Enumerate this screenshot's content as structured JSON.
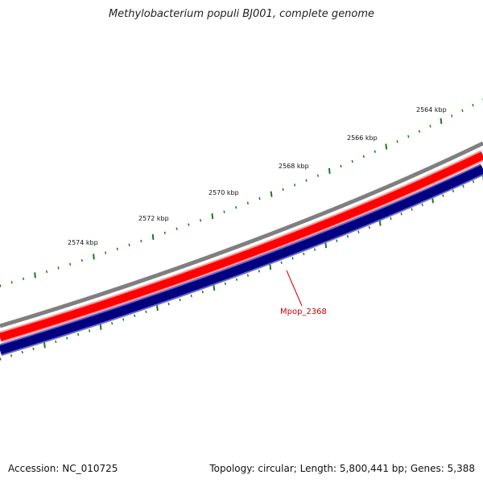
{
  "title": "Methylobacterium populi BJ001, complete genome",
  "accession": "Accession: NC_010725",
  "summary": "Topology: circular; Length: 5,800,441 bp; Genes: 5,388",
  "kbp_labels": [
    "2564 kbp",
    "2566 kbp",
    "2568 kbp",
    "2570 kbp",
    "2572 kbp",
    "2574 kbp"
  ],
  "gene_label": "Mpop_2368",
  "colors": {
    "backbone": "#7f7f7f",
    "forward_strand": "#ff0000",
    "reverse_strand": "#000080",
    "reverse_outline": "#6a6ac8",
    "ticks": "#1e7a1e",
    "gene_label": "#cc0000"
  }
}
